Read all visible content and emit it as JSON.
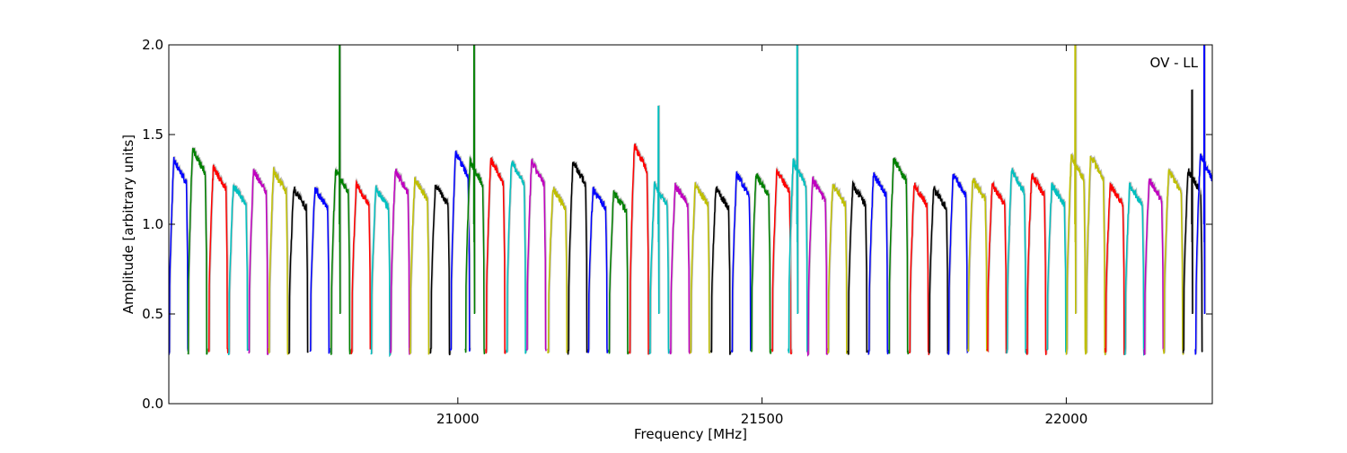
{
  "chart_data": {
    "type": "line",
    "title": "",
    "annotation": "OV - LL",
    "xlabel": "Frequency [MHz]",
    "ylabel": "Amplitude [arbitrary units]",
    "xlim": [
      20525,
      22240
    ],
    "ylim": [
      0.0,
      2.0
    ],
    "xticks": [
      21000,
      21500,
      22000
    ],
    "xtick_labels": [
      "21000",
      "21500",
      "22000"
    ],
    "yticks": [
      0.0,
      0.5,
      1.0,
      1.5,
      2.0
    ],
    "ytick_labels": [
      "0.0",
      "0.5",
      "1.0",
      "1.5",
      "2.0"
    ],
    "grid": false,
    "legend": "none",
    "colors": [
      "#0000ff",
      "#008000",
      "#ff0000",
      "#00bfbf",
      "#bf00bf",
      "#bfbf00",
      "#000000"
    ],
    "background_trace_color": "#c0c0c0",
    "window_width_mhz": 32,
    "windows": [
      {
        "start": 20525,
        "peak": 1.36,
        "color": "#0000ff"
      },
      {
        "start": 20556,
        "peak": 1.42,
        "color": "#008000"
      },
      {
        "start": 20590,
        "peak": 1.32,
        "color": "#ff0000"
      },
      {
        "start": 20623,
        "peak": 1.22,
        "color": "#00bfbf"
      },
      {
        "start": 20656,
        "peak": 1.3,
        "color": "#bf00bf"
      },
      {
        "start": 20689,
        "peak": 1.3,
        "color": "#bfbf00"
      },
      {
        "start": 20722,
        "peak": 1.2,
        "color": "#000000"
      },
      {
        "start": 20757,
        "peak": 1.2,
        "color": "#0000ff"
      },
      {
        "start": 20791,
        "peak": 1.3,
        "color": "#008000",
        "spike": 2.0
      },
      {
        "start": 20825,
        "peak": 1.22,
        "color": "#ff0000"
      },
      {
        "start": 20857,
        "peak": 1.2,
        "color": "#00bfbf"
      },
      {
        "start": 20889,
        "peak": 1.3,
        "color": "#bf00bf"
      },
      {
        "start": 20921,
        "peak": 1.25,
        "color": "#bfbf00"
      },
      {
        "start": 20955,
        "peak": 1.22,
        "color": "#000000"
      },
      {
        "start": 20988,
        "peak": 1.4,
        "color": "#0000ff"
      },
      {
        "start": 21012,
        "peak": 1.35,
        "color": "#008000",
        "spike": 2.0
      },
      {
        "start": 21046,
        "peak": 1.36,
        "color": "#ff0000"
      },
      {
        "start": 21080,
        "peak": 1.35,
        "color": "#00bfbf"
      },
      {
        "start": 21113,
        "peak": 1.35,
        "color": "#bf00bf"
      },
      {
        "start": 21148,
        "peak": 1.2,
        "color": "#bfbf00"
      },
      {
        "start": 21181,
        "peak": 1.35,
        "color": "#000000"
      },
      {
        "start": 21214,
        "peak": 1.2,
        "color": "#0000ff"
      },
      {
        "start": 21248,
        "peak": 1.18,
        "color": "#008000"
      },
      {
        "start": 21282,
        "peak": 1.44,
        "color": "#ff0000"
      },
      {
        "start": 21315,
        "peak": 1.22,
        "color": "#00bfbf",
        "spike": 1.66
      },
      {
        "start": 21349,
        "peak": 1.22,
        "color": "#bf00bf"
      },
      {
        "start": 21382,
        "peak": 1.22,
        "color": "#bfbf00"
      },
      {
        "start": 21416,
        "peak": 1.2,
        "color": "#000000"
      },
      {
        "start": 21450,
        "peak": 1.28,
        "color": "#0000ff"
      },
      {
        "start": 21482,
        "peak": 1.28,
        "color": "#008000"
      },
      {
        "start": 21516,
        "peak": 1.3,
        "color": "#ff0000"
      },
      {
        "start": 21543,
        "peak": 1.35,
        "color": "#00bfbf",
        "spike": 2.0
      },
      {
        "start": 21575,
        "peak": 1.25,
        "color": "#bf00bf"
      },
      {
        "start": 21608,
        "peak": 1.22,
        "color": "#bfbf00"
      },
      {
        "start": 21641,
        "peak": 1.22,
        "color": "#000000"
      },
      {
        "start": 21675,
        "peak": 1.28,
        "color": "#0000ff"
      },
      {
        "start": 21708,
        "peak": 1.37,
        "color": "#008000"
      },
      {
        "start": 21742,
        "peak": 1.22,
        "color": "#ff0000"
      },
      {
        "start": 21774,
        "peak": 1.2,
        "color": "#000000"
      },
      {
        "start": 21806,
        "peak": 1.28,
        "color": "#0000ff"
      },
      {
        "start": 21838,
        "peak": 1.25,
        "color": "#bfbf00"
      },
      {
        "start": 21870,
        "peak": 1.22,
        "color": "#ff0000"
      },
      {
        "start": 21902,
        "peak": 1.3,
        "color": "#00bfbf"
      },
      {
        "start": 21935,
        "peak": 1.28,
        "color": "#ff0000"
      },
      {
        "start": 21968,
        "peak": 1.22,
        "color": "#00bfbf"
      },
      {
        "start": 22000,
        "peak": 1.38,
        "color": "#bfbf00",
        "spike": 2.0
      },
      {
        "start": 22032,
        "peak": 1.38,
        "color": "#bfbf00"
      },
      {
        "start": 22064,
        "peak": 1.22,
        "color": "#ff0000"
      },
      {
        "start": 22096,
        "peak": 1.22,
        "color": "#00bfbf"
      },
      {
        "start": 22128,
        "peak": 1.25,
        "color": "#bf00bf"
      },
      {
        "start": 22160,
        "peak": 1.3,
        "color": "#bfbf00"
      },
      {
        "start": 22192,
        "peak": 1.3,
        "color": "#000000",
        "spike": 1.75
      },
      {
        "start": 22212,
        "peak": 1.38,
        "color": "#0000ff",
        "spike": 2.0
      }
    ]
  }
}
